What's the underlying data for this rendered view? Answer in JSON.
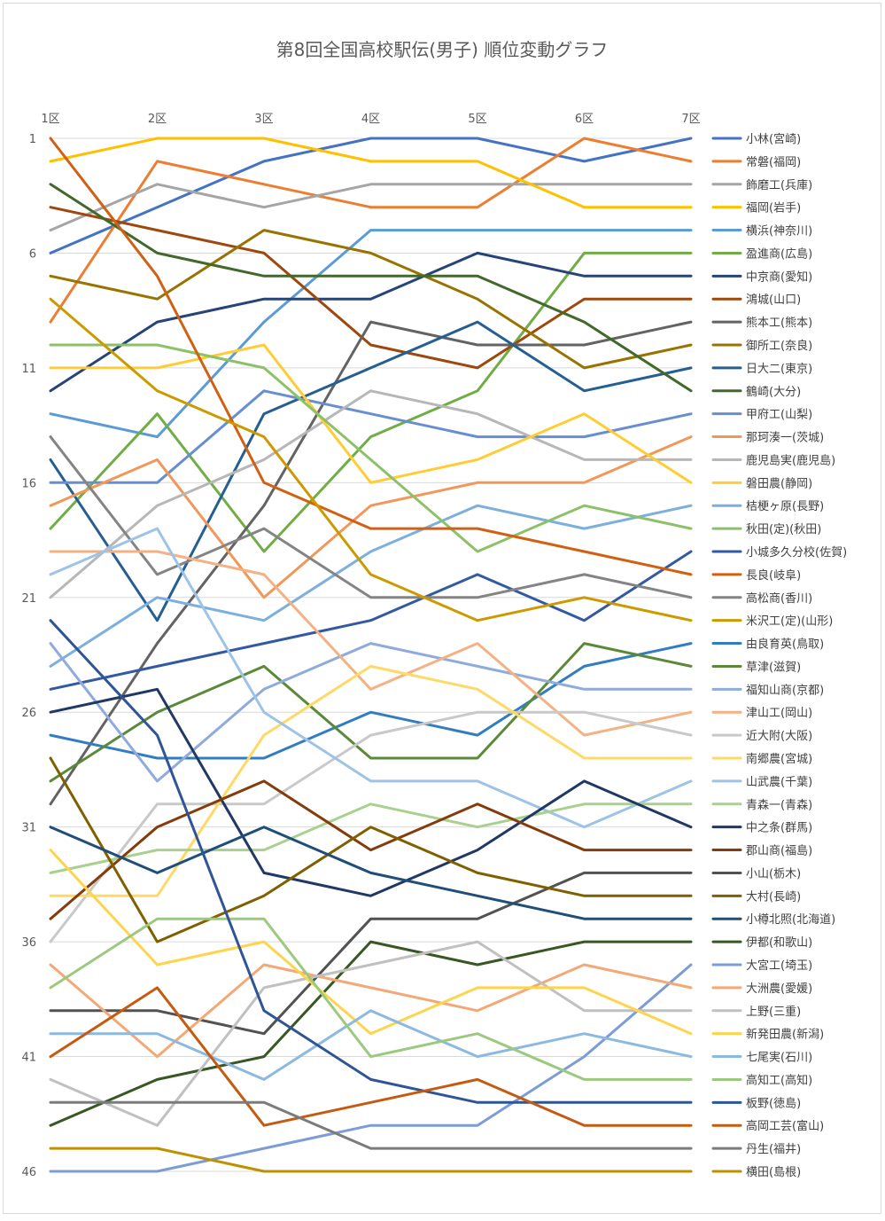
{
  "chart_data": {
    "type": "line",
    "title": "第8回全国高校駅伝(男子) 順位変動グラフ",
    "categories": [
      "1区",
      "2区",
      "3区",
      "4区",
      "5区",
      "6区",
      "7区"
    ],
    "y_ticks": [
      1,
      6,
      11,
      16,
      21,
      26,
      31,
      36,
      41,
      46
    ],
    "ylim": [
      1,
      46
    ],
    "y_reversed": true,
    "grid": true,
    "legend_position": "right",
    "series": [
      {
        "name": "小林(宮崎)",
        "color": "#4472C4",
        "values": [
          6,
          4,
          2,
          1,
          1,
          2,
          1
        ]
      },
      {
        "name": "常磐(福岡)",
        "color": "#ED7D31",
        "values": [
          9,
          2,
          3,
          4,
          4,
          1,
          2
        ]
      },
      {
        "name": "飾磨工(兵庫)",
        "color": "#A5A5A5",
        "values": [
          5,
          3,
          4,
          3,
          3,
          3,
          3
        ]
      },
      {
        "name": "福岡(岩手)",
        "color": "#FFC000",
        "values": [
          2,
          1,
          1,
          2,
          2,
          4,
          4
        ]
      },
      {
        "name": "横浜(神奈川)",
        "color": "#5B9BD5",
        "values": [
          13,
          14,
          9,
          5,
          5,
          5,
          5
        ]
      },
      {
        "name": "盈進商(広島)",
        "color": "#70AD47",
        "values": [
          18,
          13,
          19,
          14,
          12,
          6,
          6
        ]
      },
      {
        "name": "中京商(愛知)",
        "color": "#264478",
        "values": [
          12,
          9,
          8,
          8,
          6,
          7,
          7
        ]
      },
      {
        "name": "鴻城(山口)",
        "color": "#9E480E",
        "values": [
          4,
          5,
          6,
          10,
          11,
          8,
          8
        ]
      },
      {
        "name": "熊本工(熊本)",
        "color": "#636363",
        "values": [
          30,
          23,
          17,
          9,
          10,
          10,
          9
        ]
      },
      {
        "name": "御所工(奈良)",
        "color": "#997300",
        "values": [
          7,
          8,
          5,
          6,
          8,
          11,
          10
        ]
      },
      {
        "name": "日大二(東京)",
        "color": "#255E91",
        "values": [
          15,
          22,
          13,
          11,
          9,
          12,
          11
        ]
      },
      {
        "name": "鶴崎(大分)",
        "color": "#43682B",
        "values": [
          3,
          6,
          7,
          7,
          7,
          9,
          12
        ]
      },
      {
        "name": "甲府工(山梨)",
        "color": "#698ED0",
        "values": [
          16,
          16,
          12,
          13,
          14,
          14,
          13
        ]
      },
      {
        "name": "那珂湊一(茨城)",
        "color": "#F1975A",
        "values": [
          17,
          15,
          21,
          17,
          16,
          16,
          14
        ]
      },
      {
        "name": "鹿児島実(鹿児島)",
        "color": "#B7B7B7",
        "values": [
          21,
          17,
          15,
          12,
          13,
          15,
          15
        ]
      },
      {
        "name": "磐田農(静岡)",
        "color": "#FFCD33",
        "values": [
          11,
          11,
          10,
          16,
          15,
          13,
          16
        ]
      },
      {
        "name": "桔梗ヶ原(長野)",
        "color": "#7CAFDD",
        "values": [
          24,
          21,
          22,
          19,
          17,
          18,
          17
        ]
      },
      {
        "name": "秋田(定)(秋田)",
        "color": "#8CC168",
        "values": [
          10,
          10,
          11,
          15,
          19,
          17,
          18
        ]
      },
      {
        "name": "小城多久分校(佐賀)",
        "color": "#335AA1",
        "values": [
          25,
          24,
          23,
          22,
          20,
          22,
          19
        ]
      },
      {
        "name": "長良(岐阜)",
        "color": "#D26012",
        "values": [
          1,
          7,
          16,
          18,
          18,
          19,
          20
        ]
      },
      {
        "name": "高松商(香川)",
        "color": "#848484",
        "values": [
          14,
          20,
          18,
          21,
          21,
          20,
          21
        ]
      },
      {
        "name": "米沢工(定)(山形)",
        "color": "#CC9A00",
        "values": [
          8,
          12,
          14,
          20,
          22,
          21,
          22
        ]
      },
      {
        "name": "由良育英(鳥取)",
        "color": "#327DC2",
        "values": [
          27,
          28,
          28,
          26,
          27,
          24,
          23
        ]
      },
      {
        "name": "草津(滋賀)",
        "color": "#5A8A39",
        "values": [
          29,
          26,
          24,
          28,
          28,
          23,
          24
        ]
      },
      {
        "name": "福知山商(京都)",
        "color": "#8FAADC",
        "values": [
          23,
          29,
          25,
          23,
          24,
          25,
          25
        ]
      },
      {
        "name": "津山工(岡山)",
        "color": "#F4B183",
        "values": [
          19,
          19,
          20,
          25,
          23,
          27,
          26
        ]
      },
      {
        "name": "近大附(大阪)",
        "color": "#C9C9C9",
        "values": [
          36,
          30,
          30,
          27,
          26,
          26,
          27
        ]
      },
      {
        "name": "南郷農(宮城)",
        "color": "#FFD966",
        "values": [
          34,
          34,
          27,
          24,
          25,
          28,
          28
        ]
      },
      {
        "name": "山武農(千葉)",
        "color": "#9DC3E6",
        "values": [
          20,
          18,
          26,
          29,
          29,
          31,
          29
        ]
      },
      {
        "name": "青森一(青森)",
        "color": "#A9D18E",
        "values": [
          33,
          32,
          32,
          30,
          31,
          30,
          30
        ]
      },
      {
        "name": "中之条(群馬)",
        "color": "#203864",
        "values": [
          26,
          25,
          33,
          34,
          32,
          29,
          31
        ]
      },
      {
        "name": "郡山商(福島)",
        "color": "#843C0C",
        "values": [
          35,
          31,
          29,
          32,
          30,
          32,
          32
        ]
      },
      {
        "name": "小山(栃木)",
        "color": "#525252",
        "values": [
          39,
          39,
          40,
          35,
          35,
          33,
          33
        ]
      },
      {
        "name": "大村(長崎)",
        "color": "#7F6000",
        "values": [
          28,
          36,
          34,
          31,
          33,
          34,
          34
        ]
      },
      {
        "name": "小樽北照(北海道)",
        "color": "#1F4E79",
        "values": [
          31,
          33,
          31,
          33,
          34,
          35,
          35
        ]
      },
      {
        "name": "伊都(和歌山)",
        "color": "#385723",
        "values": [
          44,
          42,
          41,
          36,
          37,
          36,
          36
        ]
      },
      {
        "name": "大宮工(埼玉)",
        "color": "#7C9CD6",
        "values": [
          46,
          46,
          45,
          44,
          44,
          41,
          37
        ]
      },
      {
        "name": "大洲農(愛媛)",
        "color": "#F3A875",
        "values": [
          37,
          41,
          37,
          38,
          39,
          37,
          38
        ]
      },
      {
        "name": "上野(三重)",
        "color": "#C0C0C0",
        "values": [
          42,
          44,
          38,
          37,
          36,
          39,
          39
        ]
      },
      {
        "name": "新発田農(新潟)",
        "color": "#FFD44D",
        "values": [
          32,
          37,
          36,
          40,
          38,
          38,
          40
        ]
      },
      {
        "name": "七尾実(石川)",
        "color": "#8CB9E1",
        "values": [
          40,
          40,
          42,
          39,
          41,
          40,
          41
        ]
      },
      {
        "name": "高知工(高知)",
        "color": "#9BC97E",
        "values": [
          38,
          35,
          35,
          41,
          40,
          42,
          42
        ]
      },
      {
        "name": "板野(徳島)",
        "color": "#2F5597",
        "values": [
          22,
          27,
          39,
          42,
          43,
          43,
          43
        ]
      },
      {
        "name": "高岡工芸(富山)",
        "color": "#C55A11",
        "values": [
          41,
          38,
          44,
          43,
          42,
          44,
          44
        ]
      },
      {
        "name": "丹生(福井)",
        "color": "#7B7B7B",
        "values": [
          43,
          43,
          43,
          45,
          45,
          45,
          45
        ]
      },
      {
        "name": "横田(島根)",
        "color": "#BF9000",
        "values": [
          45,
          45,
          46,
          46,
          46,
          46,
          46
        ]
      }
    ]
  }
}
